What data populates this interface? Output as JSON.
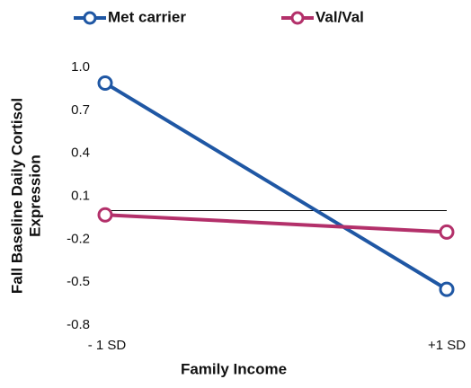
{
  "chart_data": {
    "type": "line",
    "categories": [
      "- 1 SD",
      "+1 SD"
    ],
    "series": [
      {
        "name": "Met carrier",
        "color": "#1f57a4",
        "values": [
          0.89,
          -0.55
        ]
      },
      {
        "name": "Val/Val",
        "color": "#b3306a",
        "values": [
          -0.03,
          -0.15
        ]
      }
    ],
    "ylabel": [
      "Fall Baseline Daily Cortisol",
      "Expression"
    ],
    "xlabel": "Family Income",
    "ylim": [
      -0.8,
      1.0
    ],
    "yticks": [
      -0.8,
      -0.5,
      -0.2,
      0.1,
      0.4,
      0.7,
      {
        "value": 1,
        "label": "1.0"
      }
    ],
    "grid": false,
    "legend": "top"
  }
}
